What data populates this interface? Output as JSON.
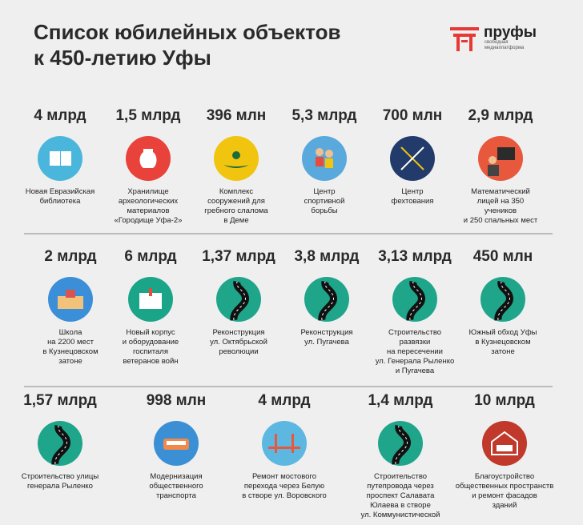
{
  "header": {
    "title_lines": [
      "Список юбилейных объектов",
      "к 450-летию Уфы"
    ],
    "logo": "пруфы",
    "logo_sub_lines": [
      "свободная",
      "медиаплатформа"
    ]
  },
  "rows": [
    {
      "items": [
        {
          "amount": "4 млрд",
          "label_lines": [
            "Новая Евразийская",
            "библиотека"
          ]
        },
        {
          "amount": "1,5 млрд",
          "label_lines": [
            "Хранилище",
            "археологических",
            "материалов",
            "«Городище Уфа-2»"
          ]
        },
        {
          "amount": "396 млн",
          "label_lines": [
            "Комплекс",
            "сооружений для",
            "гребного слалома",
            "в Деме"
          ]
        },
        {
          "amount": "5,3 млрд",
          "label_lines": [
            "Центр",
            "спортивной",
            "борьбы"
          ]
        },
        {
          "amount": "700 млн",
          "label_lines": [
            "Центр",
            "фехтования"
          ]
        },
        {
          "amount": "2,9 млрд",
          "label_lines": [
            "Математический",
            "лицей на 350",
            "учеников",
            "и 250 спальных мест"
          ]
        }
      ]
    },
    {
      "items": [
        {
          "amount": "2 млрд",
          "label_lines": [
            "Школа",
            "на 2200 мест",
            "в Кузнецовском",
            "затоне"
          ]
        },
        {
          "amount": "6 млрд",
          "label_lines": [
            "Новый корпус",
            "и оборудование",
            "госпиталя",
            "ветеранов войн"
          ]
        },
        {
          "amount": "1,37 млрд",
          "label_lines": [
            "Реконструкция",
            "ул. Октябрьской",
            "революции"
          ]
        },
        {
          "amount": "3,8 млрд",
          "label_lines": [
            "Реконструкция",
            "ул. Пугачева"
          ]
        },
        {
          "amount": "3,13 млрд",
          "label_lines": [
            "Строительство",
            "развязки",
            "на пересечении",
            "ул. Генерала Рыленко",
            "и Пугачева"
          ]
        },
        {
          "amount": "450 млн",
          "label_lines": [
            "Южный обход Уфы",
            "в Кузнецовском",
            "затоне"
          ]
        }
      ]
    },
    {
      "items": [
        {
          "amount": "1,57 млрд",
          "label_lines": [
            "Строительство улицы",
            "генерала Рыленко"
          ]
        },
        {
          "amount": "998 млн",
          "label_lines": [
            "Модернизация",
            "общественного",
            "транспорта"
          ]
        },
        {
          "amount": "4 млрд",
          "label_lines": [
            "Ремонт мостового",
            "перехода через Белую",
            "в створе ул. Воровского"
          ]
        },
        {
          "amount": "1,4 млрд",
          "label_lines": [
            "Строительство",
            "путепровода через",
            "проспект Салавата",
            "Юлаева в створе",
            "ул. Коммунистической"
          ]
        },
        {
          "amount": "10 млрд",
          "label_lines": [
            "Благоустройство",
            "общественных пространств",
            "и ремонт фасадов",
            "зданий"
          ]
        }
      ]
    }
  ]
}
